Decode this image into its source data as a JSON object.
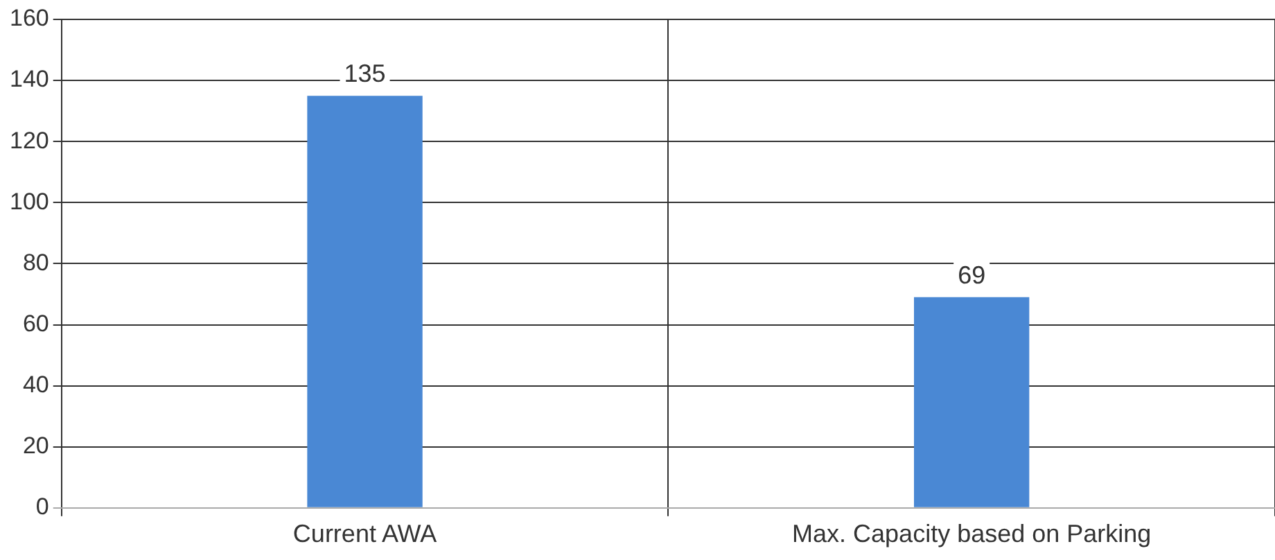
{
  "chart_data": {
    "type": "bar",
    "categories": [
      "Current AWA",
      "Max. Capacity based on Parking"
    ],
    "values": [
      135,
      69
    ],
    "color": "#4a88d4",
    "ylim": [
      0,
      160
    ],
    "yticks": [
      0,
      20,
      40,
      60,
      80,
      100,
      120,
      140,
      160
    ],
    "grid": true,
    "data_labels": true
  }
}
